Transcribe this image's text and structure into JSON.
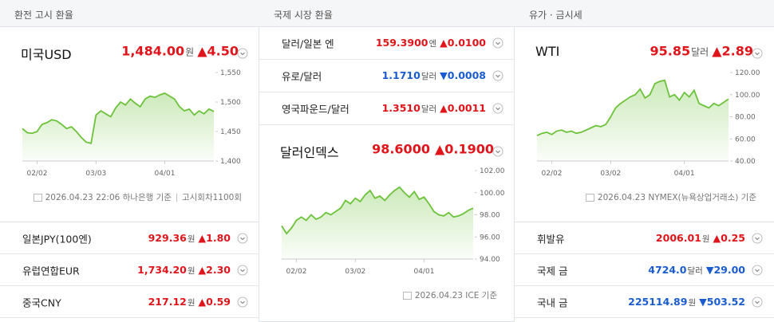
{
  "panels": [
    {
      "title": "환전 고시 환율",
      "main": {
        "name": "미국USD",
        "price": "1,484.00",
        "unit": "원",
        "change": "▲4.50",
        "trend": "up"
      },
      "chart": {
        "type": "line",
        "color": "#6cc23a",
        "categories": [
          null,
          null,
          null,
          "02/02",
          null,
          null,
          null,
          null,
          null,
          null,
          null,
          null,
          null,
          null,
          null,
          "03/03",
          null,
          null,
          null,
          null,
          null,
          null,
          null,
          null,
          null,
          null,
          null,
          null,
          null,
          "04/01",
          null,
          null,
          null,
          null,
          null,
          null,
          null,
          null,
          null,
          null
        ],
        "values": [
          1455,
          1448,
          1447,
          1450,
          1462,
          1465,
          1470,
          1468,
          1462,
          1455,
          1458,
          1450,
          1440,
          1432,
          1430,
          1478,
          1485,
          1480,
          1475,
          1490,
          1500,
          1495,
          1505,
          1498,
          1492,
          1505,
          1510,
          1508,
          1512,
          1515,
          1510,
          1505,
          1492,
          1485,
          1488,
          1478,
          1485,
          1480,
          1488,
          1484
        ],
        "ylim": [
          1400,
          1550
        ],
        "yticks": [
          {
            "value": 1550,
            "label": "1,550"
          },
          {
            "value": 1500,
            "label": "1,500"
          },
          {
            "value": 1450,
            "label": "1,450"
          },
          {
            "value": 1400,
            "label": "1,400"
          }
        ]
      },
      "note": [
        "2026.04.23 22:06 하나은행 기준",
        "고시회차1100회"
      ],
      "rows": [
        {
          "name": "일본JPY(100엔)",
          "price": "929.36",
          "unit": "원",
          "change": "▲1.80",
          "trend": "up"
        },
        {
          "name": "유럽연합EUR",
          "price": "1,734.20",
          "unit": "원",
          "change": "▲2.30",
          "trend": "up"
        },
        {
          "name": "중국CNY",
          "price": "217.12",
          "unit": "원",
          "change": "▲0.59",
          "trend": "up"
        }
      ]
    },
    {
      "title": "국제 시장 환율",
      "rows": [
        {
          "name": "달러/일본 엔",
          "price": "159.3900",
          "unit": "엔",
          "change": "▲0.0100",
          "trend": "up"
        },
        {
          "name": "유로/달러",
          "price": "1.1710",
          "unit": "달러",
          "change": "▼0.0008",
          "trend": "down"
        },
        {
          "name": "영국파운드/달러",
          "price": "1.3510",
          "unit": "달러",
          "change": "▲0.0011",
          "trend": "up"
        }
      ],
      "main": {
        "name": "달러인덱스",
        "price": "98.6000",
        "change": "▲0.1900",
        "trend": "up"
      },
      "chart": {
        "type": "line",
        "color": "#6cc23a",
        "categories": [
          null,
          null,
          null,
          "02/02",
          null,
          null,
          null,
          null,
          null,
          null,
          null,
          null,
          null,
          null,
          null,
          "03/02",
          null,
          null,
          null,
          null,
          null,
          null,
          null,
          null,
          null,
          null,
          null,
          null,
          null,
          "04/01",
          null,
          null,
          null,
          null,
          null,
          null,
          null,
          null,
          null,
          null
        ],
        "values": [
          97.0,
          96.3,
          96.8,
          97.5,
          97.8,
          97.5,
          98.0,
          97.6,
          97.8,
          98.2,
          98.0,
          98.3,
          98.6,
          99.3,
          99.0,
          99.5,
          99.2,
          99.8,
          100.2,
          99.5,
          99.7,
          99.3,
          99.8,
          100.2,
          100.5,
          100.0,
          99.6,
          100.1,
          99.4,
          99.6,
          99.0,
          98.3,
          98.0,
          97.9,
          98.2,
          97.8,
          97.9,
          98.1,
          98.4,
          98.6
        ],
        "ylim": [
          94,
          102
        ],
        "yticks": [
          {
            "value": 102,
            "label": "102.00"
          },
          {
            "value": 100,
            "label": "100.00"
          },
          {
            "value": 98,
            "label": "98.00"
          },
          {
            "value": 96,
            "label": "96.00"
          },
          {
            "value": 94,
            "label": "94.00"
          }
        ]
      },
      "note": [
        "2026.04.23 ICE 기준"
      ]
    },
    {
      "title": "유가 · 금시세",
      "main": {
        "name": "WTI",
        "price": "95.85",
        "unit": "달러",
        "change": "▲2.89",
        "trend": "up"
      },
      "chart": {
        "type": "line",
        "color": "#6cc23a",
        "categories": [
          null,
          null,
          null,
          "02/02",
          null,
          null,
          null,
          null,
          null,
          null,
          null,
          null,
          null,
          null,
          null,
          "03/02",
          null,
          null,
          null,
          null,
          null,
          null,
          null,
          null,
          null,
          null,
          null,
          null,
          null,
          null,
          "04/01",
          null,
          null,
          null,
          null,
          null,
          null,
          null,
          null,
          null
        ],
        "values": [
          63,
          65,
          66,
          64,
          67,
          68,
          66,
          67,
          65,
          66,
          68,
          70,
          72,
          71,
          73,
          80,
          88,
          92,
          95,
          98,
          100,
          105,
          97,
          100,
          110,
          112,
          113,
          98,
          100,
          95,
          102,
          98,
          104,
          92,
          90,
          88,
          92,
          90,
          93,
          96
        ],
        "ylim": [
          40,
          120
        ],
        "yticks": [
          {
            "value": 120,
            "label": "120.00"
          },
          {
            "value": 100,
            "label": "100.00"
          },
          {
            "value": 80,
            "label": "80.00"
          },
          {
            "value": 60,
            "label": "60.00"
          },
          {
            "value": 40,
            "label": "40.00"
          }
        ]
      },
      "note": [
        "2026.04.23 NYMEX(뉴욕상업거래소) 기준"
      ],
      "rows": [
        {
          "name": "휘발유",
          "price": "2006.01",
          "unit": "원",
          "change": "▲0.25",
          "trend": "up"
        },
        {
          "name": "국제 금",
          "price": "4724.0",
          "unit": "달러",
          "change": "▼29.00",
          "trend": "down"
        },
        {
          "name": "국내 금",
          "price": "225114.89",
          "unit": "원",
          "change": "▼503.52",
          "trend": "down"
        }
      ]
    }
  ]
}
